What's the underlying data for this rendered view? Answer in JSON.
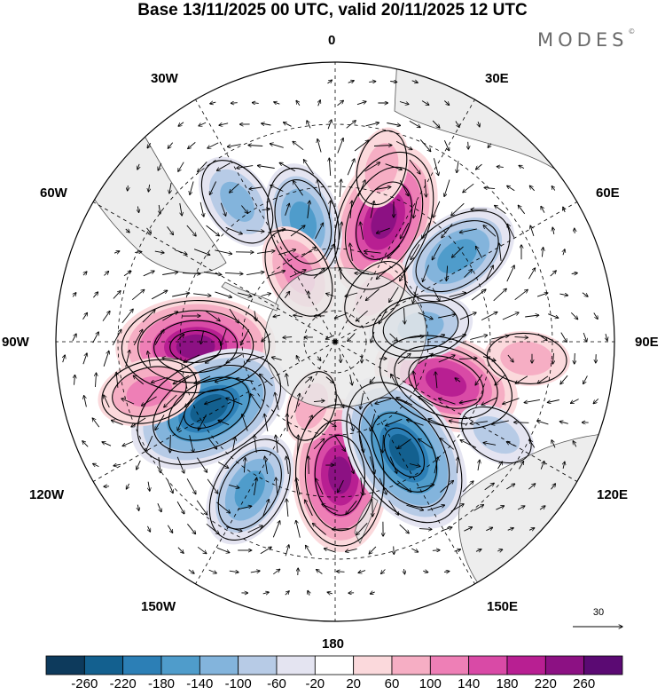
{
  "title": "Base 13/11/2025 00 UTC, valid 20/11/2025 12 UTC",
  "logo": {
    "text": "MODES",
    "mark": "©"
  },
  "longitude_labels": {
    "top": "0",
    "bottom": "180",
    "left": "90W",
    "right": "90E",
    "w30": "30W",
    "e30": "30E",
    "w60": "60W",
    "e60": "60E",
    "w120": "120W",
    "e120": "120E",
    "w150": "150W",
    "e150": "150E"
  },
  "reference_vector": {
    "label": "30"
  },
  "colorbar": {
    "labels": [
      "-260",
      "-220",
      "-180",
      "-140",
      "-100",
      "-60",
      "-20",
      "20",
      "60",
      "100",
      "140",
      "180",
      "220",
      "260"
    ],
    "colors": [
      "#0d3a5c",
      "#13608f",
      "#2c7fb6",
      "#4f9ccb",
      "#83b4dc",
      "#b7cbe6",
      "#e4e4f1",
      "#ffffff",
      "#fbd9dc",
      "#f6aec4",
      "#ee7fb6",
      "#d94aa6",
      "#b81f92",
      "#8c1183",
      "#5b0a73"
    ]
  },
  "palette": {
    "land": "#e8e8e8",
    "grid": "#000000",
    "contour": "#000000"
  },
  "anomalies": [
    {
      "lon": 22,
      "lat": -48,
      "value": 230
    },
    {
      "lon": -92,
      "lat": -45,
      "value": 240
    },
    {
      "lon": 110,
      "lat": -52,
      "value": 215
    },
    {
      "lon": 178,
      "lat": -47,
      "value": 225
    },
    {
      "lon": -118,
      "lat": -44,
      "value": -255
    },
    {
      "lon": 148,
      "lat": -48,
      "value": -255
    },
    {
      "lon": 55,
      "lat": -42,
      "value": -170
    },
    {
      "lon": -15,
      "lat": -50,
      "value": -150
    },
    {
      "lon": -150,
      "lat": -35,
      "value": -150
    },
    {
      "lon": -35,
      "lat": -35,
      "value": -110
    },
    {
      "lon": 80,
      "lat": -62,
      "value": -120
    },
    {
      "lon": -28,
      "lat": -65,
      "value": 110
    },
    {
      "lon": -105,
      "lat": -28,
      "value": 120
    },
    {
      "lon": 95,
      "lat": -28,
      "value": 80
    },
    {
      "lon": 40,
      "lat": -70,
      "value": 70
    },
    {
      "lon": -160,
      "lat": -68,
      "value": 60
    },
    {
      "lon": 120,
      "lat": -30,
      "value": -70
    },
    {
      "lon": 15,
      "lat": -32,
      "value": 70
    }
  ]
}
